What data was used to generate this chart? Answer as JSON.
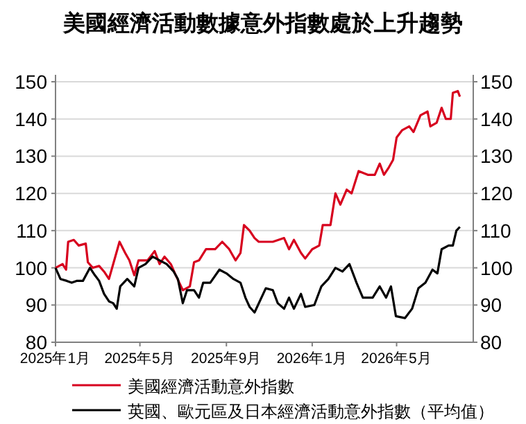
{
  "chart_data": {
    "type": "line",
    "title": "美國經濟活動數據意外指數處於上升趨勢",
    "xlim": [
      "2025-01-01",
      "2026-08-18"
    ],
    "xticks": [
      {
        "value": "2025-01-01",
        "label": "2025年1月"
      },
      {
        "value": "2025-05-01",
        "label": "2025年5月"
      },
      {
        "value": "2025-09-01",
        "label": "2025年9月"
      },
      {
        "value": "2026-01-01",
        "label": "2026年1月"
      },
      {
        "value": "2026-05-01",
        "label": "2026年5月"
      }
    ],
    "ylim": [
      80,
      150
    ],
    "yticks": [
      80,
      90,
      100,
      110,
      120,
      130,
      140,
      150
    ],
    "y2lim": [
      80,
      150
    ],
    "y2ticks": [
      80,
      90,
      100,
      110,
      120,
      130,
      140,
      150
    ],
    "grid": "y",
    "legend": "bottom",
    "series": [
      {
        "name": "美國經濟活動意外指數",
        "color": "#d7001e",
        "x": [
          "2025-01-01",
          "2025-01-11",
          "2025-01-16",
          "2025-01-19",
          "2025-01-27",
          "2025-02-03",
          "2025-02-13",
          "2025-02-16",
          "2025-02-23",
          "2025-03-04",
          "2025-03-11",
          "2025-03-18",
          "2025-03-24",
          "2025-04-02",
          "2025-04-10",
          "2025-04-16",
          "2025-04-23",
          "2025-04-29",
          "2025-05-12",
          "2025-05-22",
          "2025-05-29",
          "2025-06-05",
          "2025-06-14",
          "2025-06-21",
          "2025-07-01",
          "2025-07-11",
          "2025-07-17",
          "2025-07-24",
          "2025-08-03",
          "2025-08-16",
          "2025-08-26",
          "2025-09-05",
          "2025-09-14",
          "2025-09-21",
          "2025-09-26",
          "2025-10-04",
          "2025-10-11",
          "2025-10-17",
          "2025-11-06",
          "2025-11-22",
          "2025-11-29",
          "2025-12-06",
          "2025-12-16",
          "2025-12-22",
          "2026-01-01",
          "2026-01-11",
          "2026-01-16",
          "2026-01-27",
          "2026-02-03",
          "2026-02-10",
          "2026-02-19",
          "2026-02-26",
          "2026-03-08",
          "2026-03-21",
          "2026-03-31",
          "2026-04-07",
          "2026-04-13",
          "2026-04-20",
          "2026-04-26",
          "2026-05-01",
          "2026-05-09",
          "2026-05-19",
          "2026-05-25",
          "2026-06-04",
          "2026-06-14",
          "2026-06-18",
          "2026-06-27",
          "2026-07-04",
          "2026-07-10",
          "2026-07-17",
          "2026-07-20",
          "2026-07-27",
          "2026-07-30"
        ],
        "values": [
          100,
          101,
          99.5,
          107,
          107.5,
          106,
          106.5,
          101.5,
          100,
          100.5,
          99,
          97,
          101,
          107,
          104,
          102,
          98,
          102,
          102,
          104.5,
          101,
          103,
          101,
          98,
          94,
          95,
          101.5,
          102,
          105,
          105,
          107,
          105,
          102,
          104,
          111.5,
          110,
          108,
          107,
          107,
          108,
          105,
          107.5,
          104,
          102.5,
          105,
          106,
          111.5,
          111.5,
          120,
          117,
          121,
          120,
          126,
          125,
          125,
          128,
          125,
          127,
          129,
          135,
          137,
          138,
          136.5,
          141,
          142,
          138,
          139,
          143,
          140,
          140,
          147,
          147.5,
          146
        ]
      },
      {
        "name": "英國、歐元區及日本經濟活動意外指數（平均值）",
        "color": "#000000",
        "x": [
          "2025-01-01",
          "2025-01-08",
          "2025-01-17",
          "2025-01-24",
          "2025-01-31",
          "2025-02-09",
          "2025-02-19",
          "2025-02-26",
          "2025-03-04",
          "2025-03-11",
          "2025-03-18",
          "2025-03-24",
          "2025-03-29",
          "2025-04-03",
          "2025-04-13",
          "2025-04-23",
          "2025-04-29",
          "2025-05-09",
          "2025-05-19",
          "2025-05-29",
          "2025-06-08",
          "2025-06-18",
          "2025-06-24",
          "2025-07-01",
          "2025-07-07",
          "2025-07-17",
          "2025-07-24",
          "2025-07-30",
          "2025-08-09",
          "2025-08-22",
          "2025-09-01",
          "2025-09-11",
          "2025-09-21",
          "2025-09-28",
          "2025-10-04",
          "2025-10-11",
          "2025-10-27",
          "2025-11-06",
          "2025-11-13",
          "2025-11-22",
          "2025-11-29",
          "2025-12-06",
          "2025-12-16",
          "2025-12-22",
          "2026-01-04",
          "2026-01-14",
          "2026-01-24",
          "2026-02-03",
          "2026-02-13",
          "2026-02-23",
          "2026-03-05",
          "2026-03-14",
          "2026-03-28",
          "2026-04-07",
          "2026-04-16",
          "2026-04-23",
          "2026-04-30",
          "2026-05-13",
          "2026-05-23",
          "2026-06-01",
          "2026-06-11",
          "2026-06-21",
          "2026-06-28",
          "2026-07-04",
          "2026-07-14",
          "2026-07-20",
          "2026-07-25",
          "2026-07-30"
        ],
        "values": [
          100,
          97,
          96.5,
          96,
          96.5,
          96.5,
          100,
          98,
          96.5,
          93,
          91,
          90.5,
          89,
          95,
          97,
          95,
          100,
          101,
          103,
          102,
          101,
          99,
          97,
          90.5,
          94,
          94,
          92,
          96,
          96,
          99.5,
          98.5,
          97,
          96,
          92,
          89.5,
          88,
          94.5,
          94,
          90.5,
          89,
          92,
          89,
          93,
          89.5,
          90,
          95,
          97,
          100,
          99,
          101,
          96,
          92,
          92,
          95,
          92,
          95,
          87,
          86.5,
          89,
          94.5,
          96,
          99.5,
          98.5,
          105,
          106,
          106,
          110,
          111
        ]
      }
    ]
  }
}
